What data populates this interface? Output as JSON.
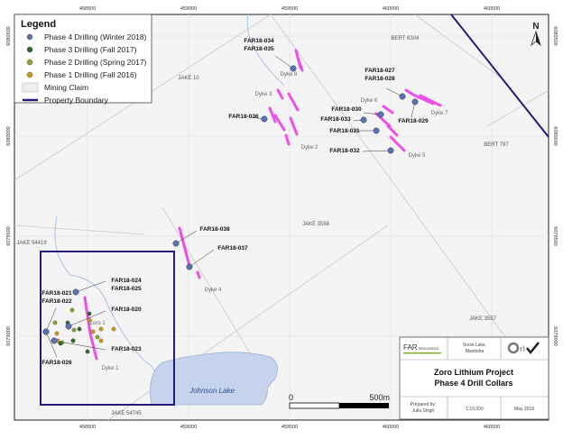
{
  "map": {
    "title_line1": "Zoro Lithium Project",
    "title_line2": "Phase 4 Drill Collars",
    "location_line1": "Snow Lake,",
    "location_line2": "Manitoba",
    "company_logo": "FAR RESOURCES",
    "consultant_logo": "Orix",
    "prepared_by_label": "Prepared by:",
    "prepared_by": "Julia Singh",
    "scale": "1:10,000",
    "date": "May 2018",
    "north_label": "N",
    "scale_bar": {
      "start": "0",
      "end": "500m"
    }
  },
  "legend": {
    "title": "Legend",
    "items": [
      {
        "label": "Phase 4 Drilling (Winter 2018)",
        "color": "#5a74b0"
      },
      {
        "label": "Phase 3 Drilling (Fall 2017)",
        "color": "#2f6b2a"
      },
      {
        "label": "Phase 2 Drilling (Spring 2017)",
        "color": "#8aa52a"
      },
      {
        "label": "Phase 1 Drilling (Fall 2016)",
        "color": "#c99a1a"
      },
      {
        "label": "Mining Claim",
        "color": "#eeeeee"
      },
      {
        "label": "Property Boundary",
        "color": "#241a78"
      }
    ]
  },
  "axes": {
    "easting": [
      "458500",
      "459000",
      "459500",
      "460000",
      "460500"
    ],
    "northing": [
      "6080500",
      "6080000",
      "6079500",
      "6079000"
    ]
  },
  "claims": [
    "JAKE 10",
    "BERT 6304",
    "BERT 797",
    "JAKE 3558",
    "JAKE 54419",
    "JAKE 3557",
    "JAKE 54745"
  ],
  "lake": "Johnson Lake",
  "dykes": [
    "Dyke 1",
    "Dyke 2",
    "Dyke 3",
    "Dyke 4",
    "Dyke 5",
    "Dyke 6",
    "Dyke 7",
    "Dyke 8",
    "Zoro 1"
  ],
  "holes": [
    "FAR18-034",
    "FAR18-035",
    "FAR18-036",
    "FAR18-027",
    "FAR18-028",
    "FAR18-029",
    "FAR18-030",
    "FAR18-033",
    "FAR18-031",
    "FAR18-032",
    "FAR18-038",
    "FAR18-037",
    "FAR18-024",
    "FAR18-025",
    "FAR18-021",
    "FAR18-022",
    "FAR18-020",
    "FAR18-023",
    "FAR18-026"
  ],
  "colors": {
    "dyke": "#ee4fe6",
    "lake": "#c5d3ec",
    "boundary": "#241a78",
    "creek": "#a9c1e6"
  }
}
